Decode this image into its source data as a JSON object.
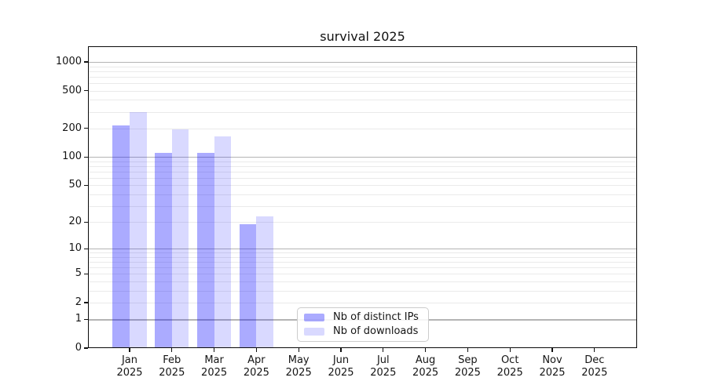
{
  "chart_data": {
    "type": "bar",
    "title": "survival 2025",
    "categories": [
      "Jan",
      "Feb",
      "Mar",
      "Apr",
      "May",
      "Jun",
      "Jul",
      "Aug",
      "Sep",
      "Oct",
      "Nov",
      "Dec"
    ],
    "year_label": "2025",
    "series": [
      {
        "name": "Nb of distinct IPs",
        "color": "rgba(0,0,255,0.33)",
        "values": [
          215,
          111,
          111,
          19,
          0,
          0,
          0,
          0,
          0,
          0,
          0,
          0
        ]
      },
      {
        "name": "Nb of downloads",
        "color": "rgba(0,0,255,0.15)",
        "values": [
          300,
          197,
          166,
          23,
          0,
          0,
          0,
          0,
          0,
          0,
          0,
          0
        ]
      }
    ],
    "yscale": "log1p",
    "ylim": [
      0,
      1461
    ],
    "yticks": [
      0,
      1,
      2,
      5,
      10,
      20,
      50,
      100,
      200,
      500,
      1000
    ],
    "major_grid_values": [
      1,
      10,
      100,
      1000
    ],
    "grid": "on",
    "legend_position": "lower-center",
    "colors": {
      "major_grid": "#b4b4b4",
      "minor_grid": "#eaeaea",
      "spine": "#0a0a0a"
    }
  }
}
